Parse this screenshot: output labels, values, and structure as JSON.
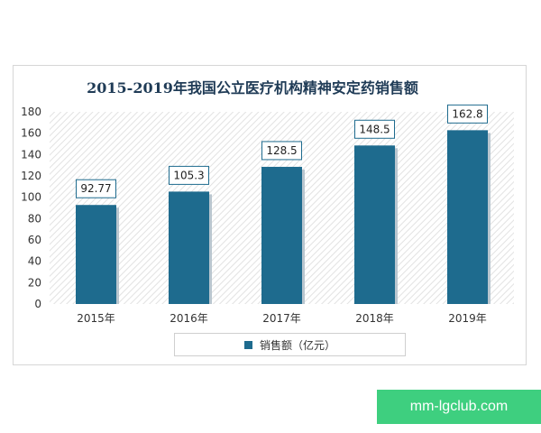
{
  "chart_data": {
    "type": "bar",
    "title": "2015-2019年我国公立医疗机构精神安定药销售额",
    "categories": [
      "2015年",
      "2016年",
      "2017年",
      "2018年",
      "2019年"
    ],
    "series": [
      {
        "name": "销售额（亿元）",
        "values": [
          92.77,
          105.3,
          128.5,
          148.5,
          162.8
        ]
      }
    ],
    "data_labels": [
      "92.77",
      "105.3",
      "128.5",
      "148.5",
      "162.8"
    ],
    "ylim": [
      0,
      180
    ],
    "yticks": [
      0,
      20,
      40,
      60,
      80,
      100,
      120,
      140,
      160,
      180
    ],
    "xlabel": "",
    "ylabel": "",
    "legend_position": "bottom",
    "grid": false,
    "bar_color": "#1e6b8e"
  },
  "watermark": {
    "text": "mm-lgclub.com"
  }
}
